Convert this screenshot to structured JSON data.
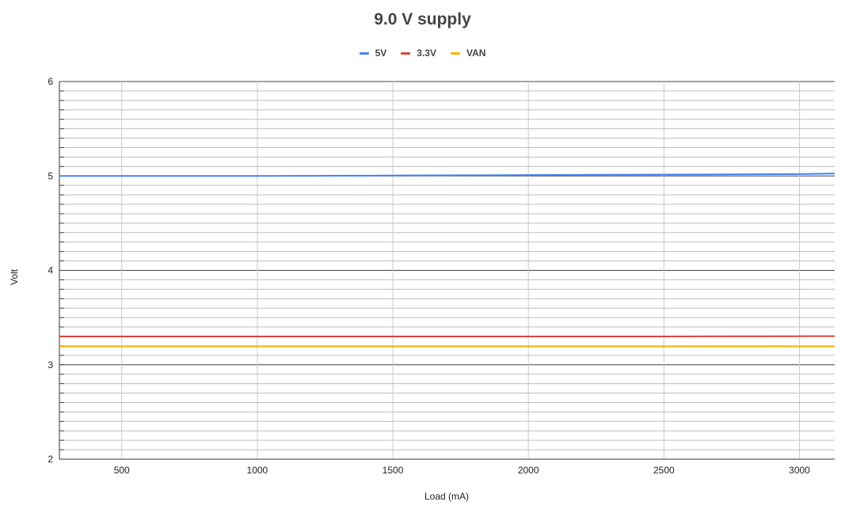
{
  "chart_data": {
    "type": "line",
    "title": "9.0 V supply",
    "xlabel": "Load (mA)",
    "ylabel": "Volt",
    "xlim": [
      270,
      3130
    ],
    "ylim": [
      2,
      6
    ],
    "x_ticks": [
      500,
      1000,
      1500,
      2000,
      2500,
      3000
    ],
    "y_ticks": [
      2,
      3,
      4,
      5,
      6
    ],
    "y_minor_step": 0.1,
    "legend_position": "top-center",
    "series": [
      {
        "name": "5V",
        "color": "#4285f4",
        "x": [
          270,
          500,
          1000,
          1500,
          2000,
          2500,
          3000,
          3130
        ],
        "y": [
          5.0,
          5.0,
          5.0,
          5.005,
          5.01,
          5.015,
          5.02,
          5.025
        ]
      },
      {
        "name": "3.3V",
        "color": "#db4437",
        "x": [
          270,
          500,
          1000,
          1500,
          2000,
          2500,
          3000,
          3130
        ],
        "y": [
          3.3,
          3.3,
          3.3,
          3.3,
          3.3,
          3.3,
          3.302,
          3.303
        ]
      },
      {
        "name": "VAN",
        "color": "#f4b400",
        "x": [
          270,
          500,
          1000,
          1500,
          2000,
          2500,
          3000,
          3130
        ],
        "y": [
          3.195,
          3.195,
          3.195,
          3.195,
          3.195,
          3.195,
          3.195,
          3.195
        ]
      }
    ]
  }
}
